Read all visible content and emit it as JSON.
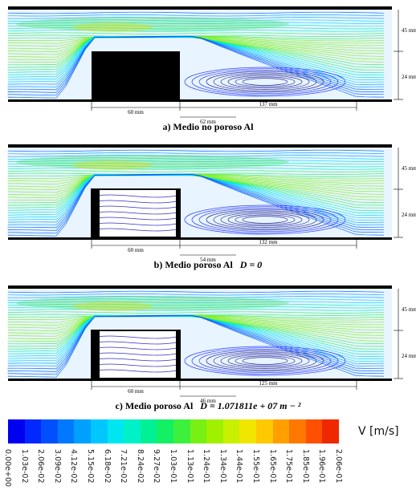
{
  "panels": [
    {
      "caption_prefix": "a) Medio no poroso  Al",
      "caption_math": "",
      "height_top": "45 mm",
      "height_bottom": "24 mm",
      "block_width": "60 mm",
      "reattach_near": "62 mm",
      "reattach_far": "137 mm",
      "porous": false
    },
    {
      "caption_prefix": "b) Medio poroso  Al",
      "caption_math": "D = 0",
      "height_top": "45 mm",
      "height_bottom": "24 mm",
      "block_width": "60 mm",
      "reattach_near": "54 mm",
      "reattach_far": "132 mm",
      "porous": true
    },
    {
      "caption_prefix": "c) Medio poroso  Al",
      "caption_math": "D = 1.071811e + 07 m − ²",
      "height_top": "45 mm",
      "height_bottom": "24 mm",
      "block_width": "60 mm",
      "reattach_near": "46 mm",
      "reattach_far": "125 mm",
      "porous": true
    }
  ],
  "colorbar": {
    "unit": "V [m/s]",
    "ticks": [
      "0.00e+00",
      "1.03e-02",
      "2.06e-02",
      "3.09e-02",
      "4.12e-02",
      "5.15e-02",
      "6.18e-02",
      "7.21e-02",
      "8.24e-02",
      "9.27e-02",
      "1.03e-01",
      "1.13e-01",
      "1.24e-01",
      "1.34e-01",
      "1.44e-01",
      "1.55e-01",
      "1.65e-01",
      "1.75e-01",
      "1.85e-01",
      "1.96e-01",
      "2.06e-01"
    ],
    "colors": [
      "#0000f0",
      "#0028ff",
      "#0050ff",
      "#0078ff",
      "#00a0ff",
      "#00c8ff",
      "#00e6f0",
      "#00f0c8",
      "#00f096",
      "#14f064",
      "#3cf03c",
      "#78f014",
      "#a0f000",
      "#c8f000",
      "#f0e600",
      "#ffc800",
      "#ffa000",
      "#ff7800",
      "#ff5000",
      "#f02800"
    ]
  }
}
